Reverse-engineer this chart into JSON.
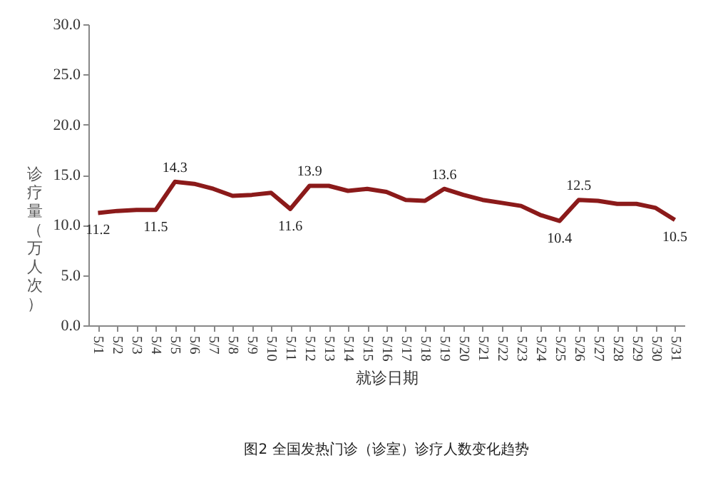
{
  "chart_data": {
    "type": "line",
    "xlabel": "就诊日期",
    "ylabel": "诊疗量（万人次）",
    "annotations": [
      "图2 全国发热门诊（诊室）诊疗人数变化趋势"
    ],
    "categories": [
      "5/1",
      "5/2",
      "5/3",
      "5/4",
      "5/5",
      "5/6",
      "5/7",
      "5/8",
      "5/9",
      "5/10",
      "5/11",
      "5/12",
      "5/13",
      "5/14",
      "5/15",
      "5/16",
      "5/17",
      "5/18",
      "5/19",
      "5/20",
      "5/21",
      "5/22",
      "5/23",
      "5/24",
      "5/25",
      "5/26",
      "5/27",
      "5/28",
      "5/29",
      "5/30",
      "5/31"
    ],
    "series": [
      {
        "color": "#8b1a1a",
        "values": [
          11.2,
          11.4,
          11.5,
          11.5,
          14.3,
          14.1,
          13.6,
          12.9,
          13.0,
          13.2,
          11.6,
          13.9,
          13.9,
          13.4,
          13.6,
          13.3,
          12.5,
          12.4,
          13.6,
          13.0,
          12.5,
          12.2,
          11.9,
          11.0,
          10.4,
          12.5,
          12.4,
          12.1,
          12.1,
          11.7,
          10.5
        ],
        "value_labels": [
          "11.2",
          null,
          null,
          "11.5",
          "14.3",
          null,
          null,
          null,
          null,
          null,
          "11.6",
          "13.9",
          null,
          null,
          null,
          null,
          null,
          null,
          "13.6",
          null,
          null,
          null,
          null,
          null,
          "10.4",
          "12.5",
          null,
          null,
          null,
          null,
          "10.5"
        ]
      }
    ],
    "ylim": [
      0,
      30
    ],
    "yticks": [
      {
        "value": 0,
        "label": "0.0"
      },
      {
        "value": 5,
        "label": "5.0"
      },
      {
        "value": 10,
        "label": "10.0"
      },
      {
        "value": 15,
        "label": "15.0"
      },
      {
        "value": 20,
        "label": "20.0"
      },
      {
        "value": 25,
        "label": "25.0"
      },
      {
        "value": 30,
        "label": "30.0"
      }
    ],
    "grid": false,
    "marker": "none",
    "line_style": "solid"
  }
}
